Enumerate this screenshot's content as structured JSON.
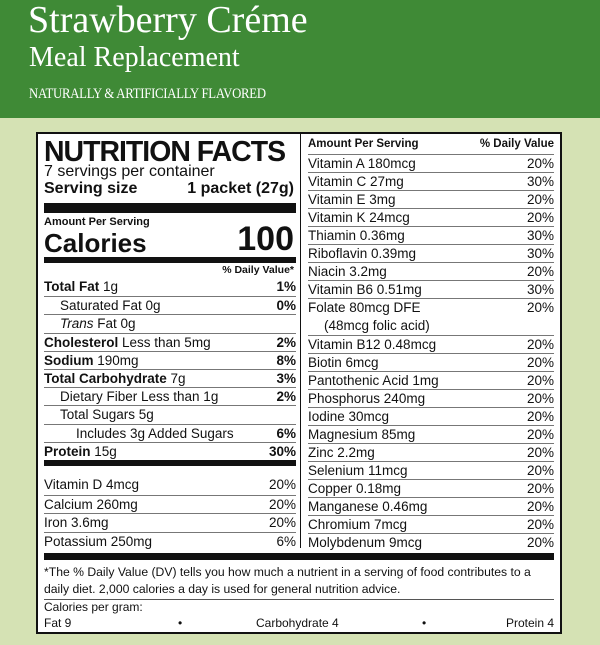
{
  "header": {
    "title": "Strawberry Créme",
    "subtitle": "Meal Replacement",
    "flavor": "NATURALLY & ARTIFICIALLY FLAVORED"
  },
  "colors": {
    "header_green": "#3f8a36",
    "background": "#d5e2b4"
  },
  "facts": {
    "title": "NUTRITION FACTS",
    "servings": "7 servings per container",
    "serving_size_label": "Serving size",
    "serving_size_value": "1 packet (27g)",
    "amount_per_serving": "Amount Per Serving",
    "calories_label": "Calories",
    "calories_value": "100",
    "dv_header": "% Daily Value*",
    "nutrients": [
      {
        "bold": "Total Fat",
        "text": " 1g",
        "dv": "1%",
        "indent": 0
      },
      {
        "bold": "",
        "text": "Saturated Fat 0g",
        "dv": "0%",
        "indent": 1
      },
      {
        "italic": "Trans",
        "text": " Fat 0g",
        "dv": "",
        "indent": 1
      },
      {
        "bold": "Cholesterol",
        "text": " Less than 5mg",
        "dv": "2%",
        "indent": 0
      },
      {
        "bold": "Sodium",
        "text": " 190mg",
        "dv": "8%",
        "indent": 0
      },
      {
        "bold": "Total Carbohydrate",
        "text": " 7g",
        "dv": "3%",
        "indent": 0
      },
      {
        "bold": "",
        "text": "Dietary Fiber Less than 1g",
        "dv": "2%",
        "indent": 1
      },
      {
        "bold": "",
        "text": "Total Sugars 5g",
        "dv": "",
        "indent": 1
      },
      {
        "bold": "",
        "text": "Includes 3g Added Sugars",
        "dv": "6%",
        "indent": 2
      },
      {
        "bold": "Protein",
        "text": " 15g",
        "dv": "30%",
        "indent": 0
      }
    ],
    "minerals": [
      {
        "text": "Vitamin D 4mcg",
        "dv": "20%"
      },
      {
        "text": "Calcium 260mg",
        "dv": "20%"
      },
      {
        "text": "Iron 3.6mg",
        "dv": "20%"
      },
      {
        "text": "Potassium 250mg",
        "dv": "6%"
      }
    ],
    "right_header": {
      "amount": "Amount Per Serving",
      "dv": "% Daily Value"
    },
    "vitamins": [
      {
        "text": "Vitamin A  180mcg",
        "dv": "20%"
      },
      {
        "text": "Vitamin C  27mg",
        "dv": "30%"
      },
      {
        "text": "Vitamin E  3mg",
        "dv": "20%"
      },
      {
        "text": "Vitamin K  24mcg",
        "dv": "20%"
      },
      {
        "text": "Thiamin  0.36mg",
        "dv": "30%"
      },
      {
        "text": "Riboflavin  0.39mg",
        "dv": "30%"
      },
      {
        "text": "Niacin  3.2mg",
        "dv": "20%"
      },
      {
        "text": "Vitamin B6  0.51mg",
        "dv": "30%"
      },
      {
        "text": "Folate  80mcg DFE",
        "text2": "(48mcg folic acid)",
        "dv": "20%"
      },
      {
        "text": "Vitamin B12  0.48mcg",
        "dv": "20%"
      },
      {
        "text": "Biotin  6mcg",
        "dv": "20%"
      },
      {
        "text": "Pantothenic Acid  1mg",
        "dv": "20%"
      },
      {
        "text": "Phosphorus  240mg",
        "dv": "20%"
      },
      {
        "text": "Iodine  30mcg",
        "dv": "20%"
      },
      {
        "text": "Magnesium  85mg",
        "dv": "20%"
      },
      {
        "text": "Zinc  2.2mg",
        "dv": "20%"
      },
      {
        "text": "Selenium  11mcg",
        "dv": "20%"
      },
      {
        "text": "Copper  0.18mg",
        "dv": "20%"
      },
      {
        "text": "Manganese  0.46mg",
        "dv": "20%"
      },
      {
        "text": "Chromium  7mcg",
        "dv": "20%"
      },
      {
        "text": "Molybdenum  9mcg",
        "dv": "20%"
      }
    ],
    "footnote": "*The % Daily Value (DV) tells you how much a nutrient in a serving of food contributes to a daily diet. 2,000 calories a day is used for general nutrition advice.",
    "cal_per_gram": "Calories per gram:",
    "fat": "Fat 9",
    "carb": "Carbohydrate 4",
    "protein": "Protein 4",
    "bullet": "•"
  }
}
